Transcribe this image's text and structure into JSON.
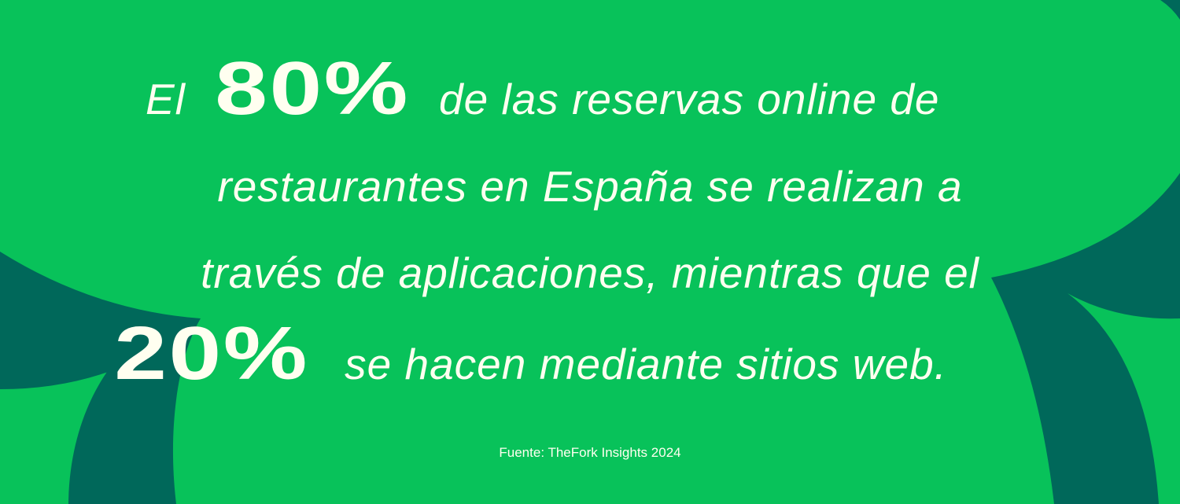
{
  "colors": {
    "background": "#08C25A",
    "accent_dark": "#00685A",
    "text": "#FFFFF0"
  },
  "headline": {
    "line1_prefix": "El",
    "stat_primary": "80%",
    "line1_suffix": "de las reservas online de",
    "line2": "restaurantes en España se realizan a",
    "line3": "través de aplicaciones, mientras que el",
    "stat_secondary": "20%",
    "line4_suffix": "se hacen mediante sitios web."
  },
  "source": "Fuente: TheFork Insights 2024"
}
